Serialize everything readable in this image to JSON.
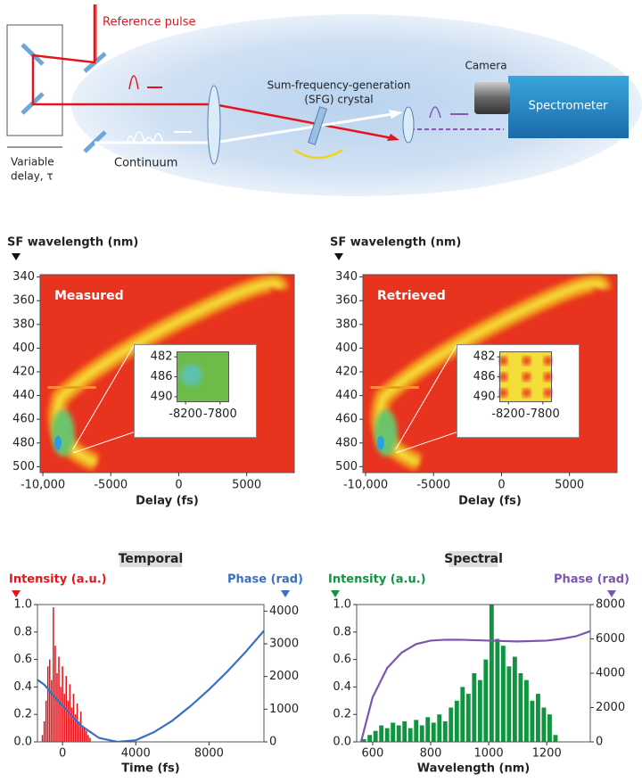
{
  "diagram": {
    "reference": "Reference pulse",
    "delay": [
      "Variable",
      "delay, τ"
    ],
    "continuum": "Continuum",
    "crystal": [
      "Sum-frequency-generation",
      "(SFG) crystal"
    ],
    "camera": "Camera",
    "spectrometer": "Spectrometer"
  },
  "chart_data": [
    {
      "type": "heatmap",
      "title": "Measured",
      "y_label": "SF wavelength (nm)",
      "x_label": "Delay (fs)",
      "xlim": [
        -10200,
        8500
      ],
      "xticks": [
        {
          "value": -10000,
          "label": "-10,000"
        },
        -5000,
        0,
        5000
      ],
      "ylim": [
        338,
        505
      ],
      "yticks": [
        340,
        360,
        380,
        400,
        420,
        440,
        460,
        480,
        500
      ],
      "inset": {
        "xlim": [
          -8300,
          -7700
        ],
        "xticks": [
          -8200,
          -7800
        ],
        "ylim": [
          481,
          491
        ],
        "yticks": [
          482,
          486,
          490
        ]
      }
    },
    {
      "type": "heatmap",
      "title": "Retrieved",
      "y_label": "SF wavelength (nm)",
      "x_label": "Delay (fs)",
      "xlim": [
        -10200,
        8500
      ],
      "xticks": [
        {
          "value": -10000,
          "label": "-10,000"
        },
        -5000,
        0,
        5000
      ],
      "ylim": [
        338,
        505
      ],
      "yticks": [
        340,
        360,
        380,
        400,
        420,
        440,
        460,
        480,
        500
      ],
      "inset": {
        "xlim": [
          -8300,
          -7700
        ],
        "xticks": [
          -8200,
          -7800
        ],
        "ylim": [
          481,
          491
        ],
        "yticks": [
          482,
          486,
          490
        ]
      }
    },
    {
      "type": "combo",
      "title": "Temporal",
      "x_label": "Time (fs)",
      "xlim": [
        -1370,
        11000
      ],
      "xticks": [
        0,
        4000,
        8000
      ],
      "ylim": [
        0,
        1
      ],
      "yticks": [
        {
          "value": 0,
          "label": "0.0"
        },
        0.2,
        0.4,
        0.6,
        0.8,
        {
          "value": 1,
          "label": "1.0"
        }
      ],
      "y2lim": [
        0,
        4200
      ],
      "y2ticks": [
        0,
        1000,
        2000,
        3000,
        4000
      ],
      "series": [
        {
          "name": "Intensity (a.u.)",
          "color": "#e8141c",
          "kind": "bar",
          "bar_width": 100,
          "x": [
            -1100,
            -1000,
            -900,
            -800,
            -700,
            -600,
            -500,
            -400,
            -300,
            -200,
            -100,
            0,
            100,
            200,
            300,
            400,
            500,
            600,
            700,
            800,
            900,
            1000,
            1100,
            1200,
            1300,
            1400,
            1500
          ],
          "values": [
            0.05,
            0.15,
            0.3,
            0.55,
            0.6,
            0.45,
            0.98,
            0.7,
            0.5,
            0.62,
            0.4,
            0.55,
            0.35,
            0.48,
            0.3,
            0.42,
            0.25,
            0.35,
            0.2,
            0.28,
            0.15,
            0.22,
            0.12,
            0.1,
            0.08,
            0.05,
            0.03
          ]
        },
        {
          "name": "Phase (rad)",
          "color": "#3a6fc4",
          "kind": "line",
          "axis": "y2",
          "x": [
            -1370,
            -1000,
            0,
            1000,
            2000,
            3000,
            4000,
            5000,
            6000,
            7000,
            8000,
            9000,
            10000,
            11000
          ],
          "values": [
            1900,
            1750,
            1100,
            500,
            120,
            0,
            50,
            300,
            650,
            1100,
            1600,
            2150,
            2750,
            3400
          ]
        }
      ]
    },
    {
      "type": "combo",
      "title": "Spectral",
      "x_label": "Wavelength (nm)",
      "xlim": [
        545,
        1350
      ],
      "xticks": [
        600,
        800,
        1000,
        1200
      ],
      "ylim": [
        0,
        1
      ],
      "yticks": [
        {
          "value": 0,
          "label": "0.0"
        },
        0.2,
        0.4,
        0.6,
        0.8,
        {
          "value": 1,
          "label": "1.0"
        }
      ],
      "y2lim": [
        0,
        8000
      ],
      "y2ticks": [
        0,
        2000,
        4000,
        6000,
        8000
      ],
      "series": [
        {
          "name": "Intensity (a.u.)",
          "color": "#0f9440",
          "kind": "bar",
          "bar_width": 20,
          "x": [
            570,
            590,
            610,
            630,
            650,
            670,
            690,
            710,
            730,
            750,
            770,
            790,
            810,
            830,
            850,
            870,
            890,
            910,
            930,
            950,
            970,
            990,
            1010,
            1030,
            1050,
            1070,
            1090,
            1110,
            1130,
            1150,
            1170,
            1190,
            1210,
            1230
          ],
          "values": [
            0.02,
            0.05,
            0.08,
            0.12,
            0.1,
            0.14,
            0.12,
            0.15,
            0.1,
            0.16,
            0.12,
            0.18,
            0.14,
            0.2,
            0.15,
            0.25,
            0.3,
            0.4,
            0.35,
            0.5,
            0.45,
            0.6,
            1.0,
            0.75,
            0.7,
            0.55,
            0.62,
            0.5,
            0.45,
            0.3,
            0.35,
            0.25,
            0.2,
            0.05
          ]
        },
        {
          "name": "Phase (rad)",
          "color": "#7a56b0",
          "kind": "line",
          "axis": "y2",
          "x": [
            560,
            600,
            650,
            700,
            750,
            800,
            850,
            900,
            1000,
            1100,
            1200,
            1250,
            1300,
            1350
          ],
          "values": [
            0,
            2600,
            4300,
            5200,
            5700,
            5900,
            5950,
            5950,
            5900,
            5850,
            5900,
            6000,
            6150,
            6450
          ]
        }
      ]
    }
  ]
}
